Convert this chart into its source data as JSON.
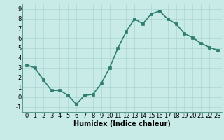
{
  "x": [
    0,
    1,
    2,
    3,
    4,
    5,
    6,
    7,
    8,
    9,
    10,
    11,
    12,
    13,
    14,
    15,
    16,
    17,
    18,
    19,
    20,
    21,
    22,
    23
  ],
  "y": [
    3.3,
    3.0,
    1.8,
    0.7,
    0.7,
    0.2,
    -0.7,
    0.2,
    0.3,
    1.4,
    3.0,
    5.0,
    6.7,
    8.0,
    7.5,
    8.5,
    8.8,
    8.0,
    7.5,
    6.5,
    6.1,
    5.5,
    5.1,
    4.8
  ],
  "line_color": "#2e7d6e",
  "marker_color": "#2e7d6e",
  "bg_color": "#c8ebe8",
  "grid_color": "#b0d8d4",
  "xlabel": "Humidex (Indice chaleur)",
  "xlim": [
    -0.5,
    23.5
  ],
  "ylim": [
    -1.5,
    9.5
  ],
  "xticks": [
    0,
    1,
    2,
    3,
    4,
    5,
    6,
    7,
    8,
    9,
    10,
    11,
    12,
    13,
    14,
    15,
    16,
    17,
    18,
    19,
    20,
    21,
    22,
    23
  ],
  "yticks": [
    -1,
    0,
    1,
    2,
    3,
    4,
    5,
    6,
    7,
    8,
    9
  ],
  "xlabel_fontsize": 7,
  "tick_fontsize": 6,
  "linewidth": 1.2,
  "markersize": 2.5
}
